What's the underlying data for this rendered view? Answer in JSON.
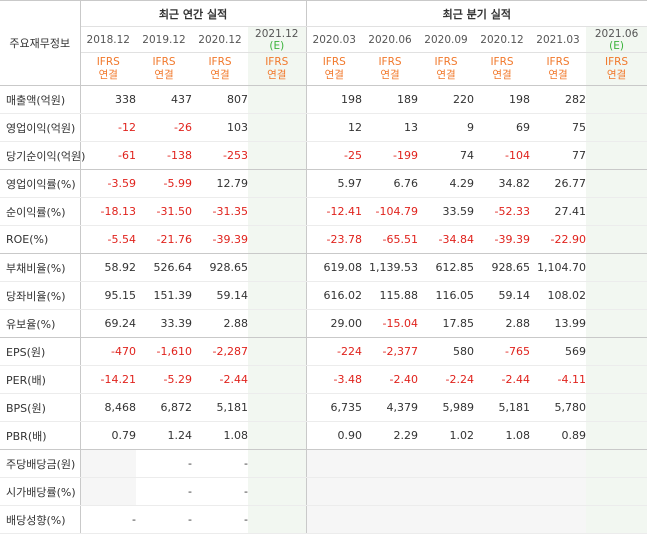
{
  "header": {
    "corner_label": "주요재무정보",
    "annual_group": "최근 연간 실적",
    "quarterly_group": "최근 분기 실적",
    "annual_periods": [
      {
        "label": "2018.12",
        "est": ""
      },
      {
        "label": "2019.12",
        "est": ""
      },
      {
        "label": "2020.12",
        "est": ""
      },
      {
        "label": "2021.12",
        "est": "(E)"
      }
    ],
    "quarter_periods": [
      {
        "label": "2020.03",
        "est": ""
      },
      {
        "label": "2020.06",
        "est": ""
      },
      {
        "label": "2020.09",
        "est": ""
      },
      {
        "label": "2020.12",
        "est": ""
      },
      {
        "label": "2021.03",
        "est": ""
      },
      {
        "label": "2021.06",
        "est": "(E)"
      }
    ],
    "basis_line1": "IFRS",
    "basis_line2": "연결"
  },
  "rows": [
    {
      "label": "매출액(억원)",
      "annual": [
        "338",
        "437",
        "807",
        ""
      ],
      "quarter": [
        "198",
        "189",
        "220",
        "198",
        "282",
        ""
      ]
    },
    {
      "label": "영업이익(억원)",
      "annual": [
        "-12",
        "-26",
        "103",
        ""
      ],
      "quarter": [
        "12",
        "13",
        "9",
        "69",
        "75",
        ""
      ]
    },
    {
      "label": "당기순이익(억원)",
      "annual": [
        "-61",
        "-138",
        "-253",
        ""
      ],
      "quarter": [
        "-25",
        "-199",
        "74",
        "-104",
        "77",
        ""
      ]
    },
    {
      "label": "영업이익률(%)",
      "annual": [
        "-3.59",
        "-5.99",
        "12.79",
        ""
      ],
      "quarter": [
        "5.97",
        "6.76",
        "4.29",
        "34.82",
        "26.77",
        ""
      ]
    },
    {
      "label": "순이익률(%)",
      "annual": [
        "-18.13",
        "-31.50",
        "-31.35",
        ""
      ],
      "quarter": [
        "-12.41",
        "-104.79",
        "33.59",
        "-52.33",
        "27.41",
        ""
      ]
    },
    {
      "label": "ROE(%)",
      "annual": [
        "-5.54",
        "-21.76",
        "-39.39",
        ""
      ],
      "quarter": [
        "-23.78",
        "-65.51",
        "-34.84",
        "-39.39",
        "-22.90",
        ""
      ]
    },
    {
      "label": "부채비율(%)",
      "annual": [
        "58.92",
        "526.64",
        "928.65",
        ""
      ],
      "quarter": [
        "619.08",
        "1,139.53",
        "612.85",
        "928.65",
        "1,104.70",
        ""
      ]
    },
    {
      "label": "당좌비율(%)",
      "annual": [
        "95.15",
        "151.39",
        "59.14",
        ""
      ],
      "quarter": [
        "616.02",
        "115.88",
        "116.05",
        "59.14",
        "108.02",
        ""
      ]
    },
    {
      "label": "유보율(%)",
      "annual": [
        "69.24",
        "33.39",
        "2.88",
        ""
      ],
      "quarter": [
        "29.00",
        "-15.04",
        "17.85",
        "2.88",
        "13.99",
        ""
      ]
    },
    {
      "label": "EPS(원)",
      "annual": [
        "-470",
        "-1,610",
        "-2,287",
        ""
      ],
      "quarter": [
        "-224",
        "-2,377",
        "580",
        "-765",
        "569",
        ""
      ]
    },
    {
      "label": "PER(배)",
      "annual": [
        "-14.21",
        "-5.29",
        "-2.44",
        ""
      ],
      "quarter": [
        "-3.48",
        "-2.40",
        "-2.24",
        "-2.44",
        "-4.11",
        ""
      ]
    },
    {
      "label": "BPS(원)",
      "annual": [
        "8,468",
        "6,872",
        "5,181",
        ""
      ],
      "quarter": [
        "6,735",
        "4,379",
        "5,989",
        "5,181",
        "5,780",
        ""
      ]
    },
    {
      "label": "PBR(배)",
      "annual": [
        "0.79",
        "1.24",
        "1.08",
        ""
      ],
      "quarter": [
        "0.90",
        "2.29",
        "1.02",
        "1.08",
        "0.89",
        ""
      ]
    },
    {
      "label": "주당배당금(원)",
      "annual": [
        "",
        "-",
        "-",
        ""
      ],
      "quarter": [
        "",
        "",
        "",
        "",
        "",
        ""
      ]
    },
    {
      "label": "시가배당률(%)",
      "annual": [
        "",
        "-",
        "-",
        ""
      ],
      "quarter": [
        "",
        "",
        "",
        "",
        "",
        ""
      ]
    },
    {
      "label": "배당성향(%)",
      "annual": [
        "-",
        "-",
        "-",
        ""
      ],
      "quarter": [
        "",
        "",
        "",
        "",
        "",
        ""
      ]
    }
  ],
  "colors": {
    "negative": "#e0231d",
    "basis": "#f1782b",
    "estimate_tag": "#3bb33b",
    "estimate_bg": "#f2f7f1"
  }
}
